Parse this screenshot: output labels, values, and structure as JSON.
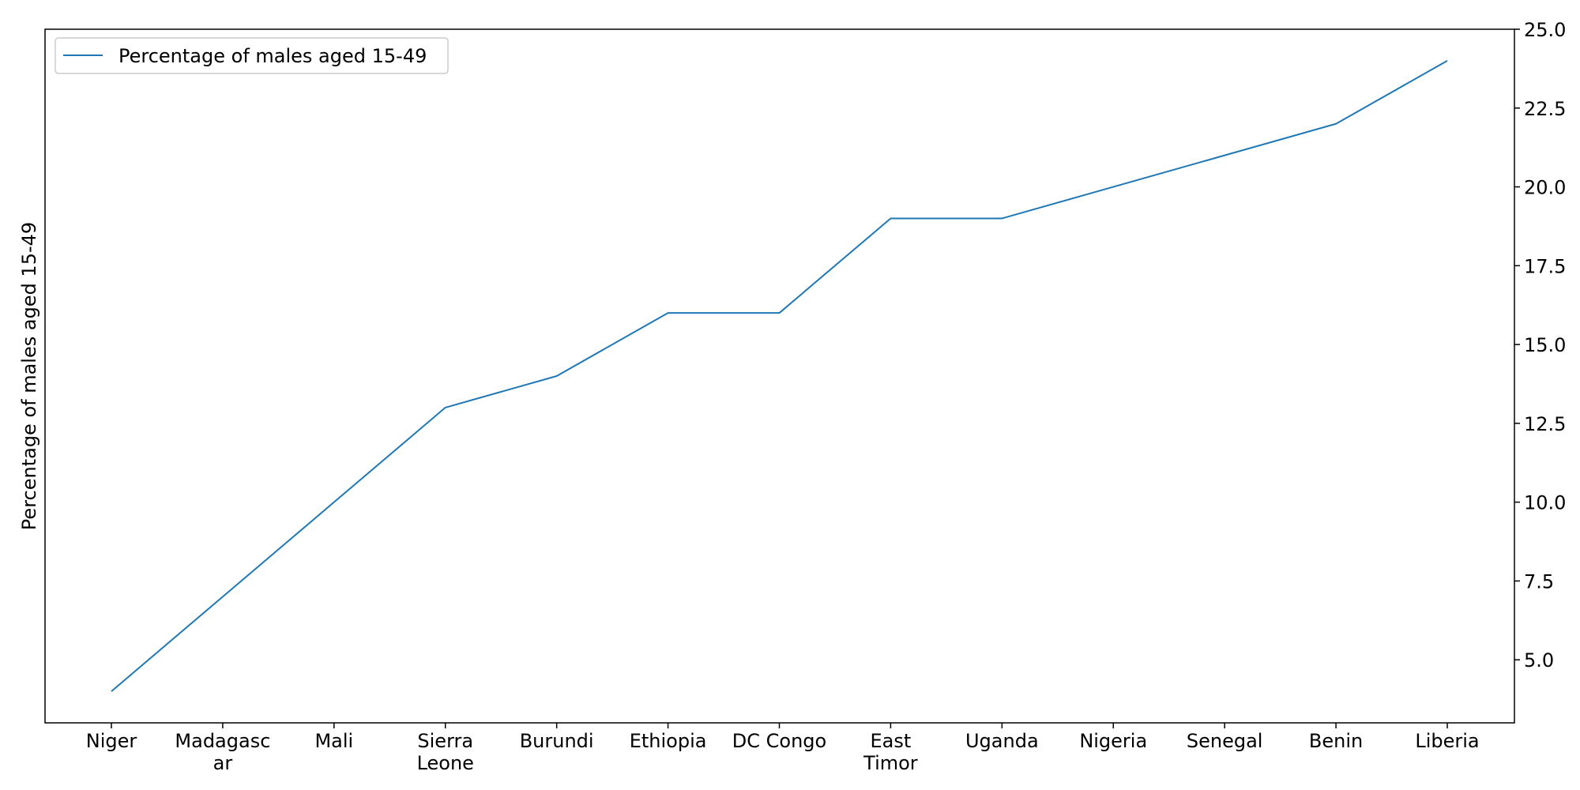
{
  "chart_data": {
    "type": "line",
    "categories": [
      [
        "Niger"
      ],
      [
        "Madagasc",
        "ar"
      ],
      [
        "Mali"
      ],
      [
        "Sierra",
        "Leone"
      ],
      [
        "Burundi"
      ],
      [
        "Ethiopia"
      ],
      [
        "DC Congo"
      ],
      [
        "East",
        "Timor"
      ],
      [
        "Uganda"
      ],
      [
        "Nigeria"
      ],
      [
        "Senegal"
      ],
      [
        "Benin"
      ],
      [
        "Liberia"
      ]
    ],
    "series": [
      {
        "name": "Percentage of males aged 15-49",
        "values": [
          4,
          7,
          10,
          13,
          14,
          16,
          16,
          19,
          19,
          20,
          21,
          22,
          24
        ],
        "color": "#1f77b4"
      }
    ],
    "ylabel": "Percentage of males aged 15-49",
    "ylim": [
      3,
      25
    ],
    "yticks": [
      5.0,
      7.5,
      10.0,
      12.5,
      15.0,
      17.5,
      20.0,
      22.5,
      25.0
    ],
    "ytick_labels": [
      "5.0",
      "7.5",
      "10.0",
      "12.5",
      "15.0",
      "17.5",
      "20.0",
      "22.5",
      "25.0"
    ],
    "y_axis_side": "right",
    "grid": false,
    "legend_position": "top-left"
  }
}
